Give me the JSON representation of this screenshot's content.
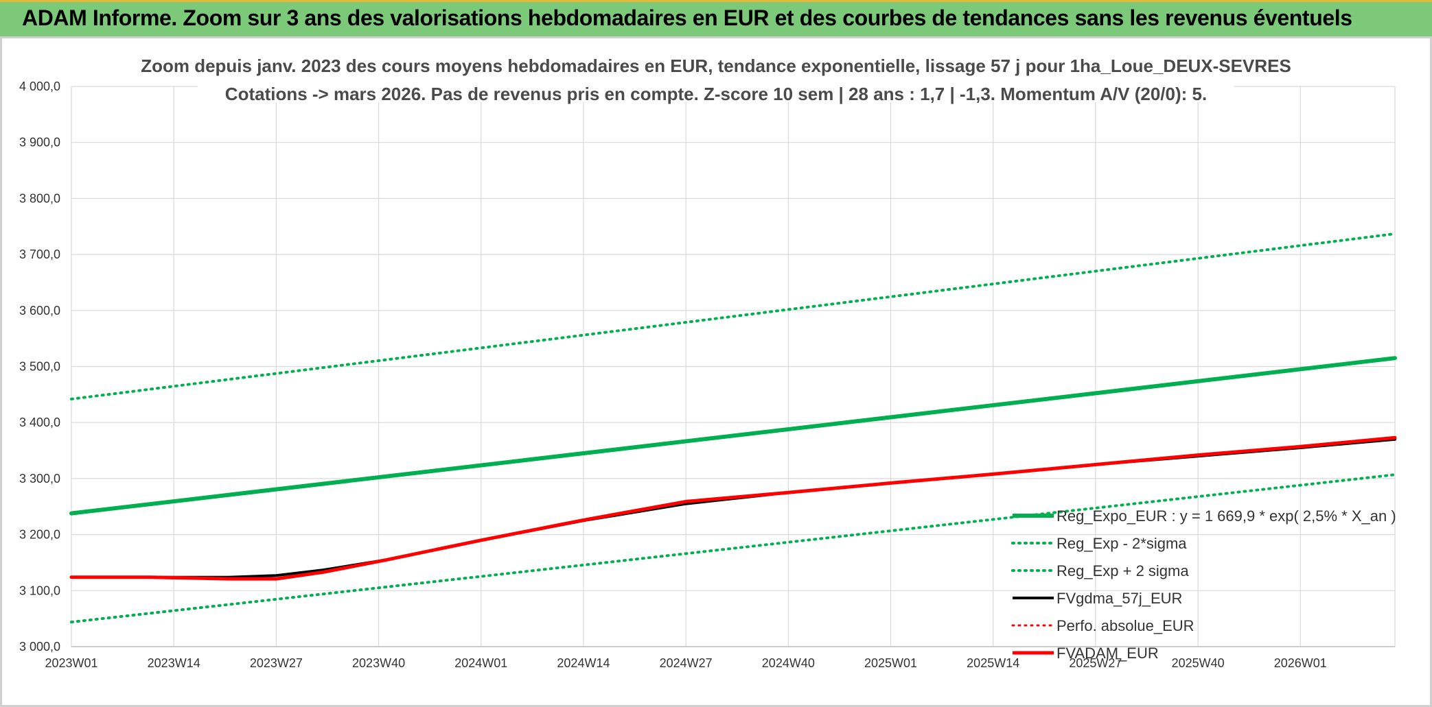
{
  "banner": {
    "title": "ADAM Informe. Zoom sur 3 ans des valorisations hebdomadaires en EUR et des courbes de tendances sans les revenus éventuels"
  },
  "colors": {
    "banner_bg": "#7cc97a",
    "banner_top": "#e4b93a",
    "green": "#00b050",
    "black": "#000000",
    "red": "#ff0000",
    "grid": "#d9d9d9"
  },
  "chart_data": {
    "type": "line",
    "title": [
      "Zoom depuis janv. 2023 des cours moyens hebdomadaires en EUR, tendance exponentielle, lissage 57 j pour 1ha_Loue_DEUX-SEVRES",
      "Cotations -> mars 2026. Pas de revenus pris en compte. Z-score 10 sem | 28 ans : 1,7 | -1,3. Momentum A/V (20/0): 5."
    ],
    "xlabel": "",
    "ylabel": "",
    "ylim": [
      3000,
      4000
    ],
    "ytick_step": 100,
    "y_tick_labels": [
      "3 000,0",
      "3 100,0",
      "3 200,0",
      "3 300,0",
      "3 400,0",
      "3 500,0",
      "3 600,0",
      "3 700,0",
      "3 800,0",
      "3 900,0",
      "4 000,0"
    ],
    "x_tick_labels": [
      "2023W01",
      "2023W14",
      "2023W27",
      "2023W40",
      "2024W01",
      "2024W14",
      "2024W27",
      "2024W40",
      "2025W01",
      "2025W14",
      "2025W27",
      "2025W40",
      "2026W01"
    ],
    "weeks_total": 169,
    "x_tick_step_weeks": 13,
    "grid": true,
    "legend_position": "bottom-right",
    "series": [
      {
        "name": "Reg_Expo_EUR : y = 1 669,9 * exp( 2,5% * X_an )",
        "color": "#00b050",
        "style": "solid",
        "width": 6,
        "points": [
          [
            0,
            3238
          ],
          [
            168,
            3515
          ]
        ]
      },
      {
        "name": "Reg_Exp - 2*sigma",
        "color": "#00b050",
        "style": "dotted",
        "width": 4,
        "points": [
          [
            0,
            3044
          ],
          [
            168,
            3307
          ]
        ]
      },
      {
        "name": "Reg_Exp + 2 sigma",
        "color": "#00b050",
        "style": "dotted",
        "width": 4,
        "points": [
          [
            0,
            3442
          ],
          [
            168,
            3737
          ]
        ]
      },
      {
        "name": "FVgdma_57j_EUR",
        "color": "#000000",
        "style": "solid",
        "width": 4,
        "points": [
          [
            0,
            3124
          ],
          [
            10,
            3124
          ],
          [
            20,
            3124
          ],
          [
            26,
            3127
          ],
          [
            32,
            3137
          ],
          [
            40,
            3155
          ],
          [
            52,
            3190
          ],
          [
            65,
            3225
          ],
          [
            78,
            3255
          ],
          [
            91,
            3275
          ],
          [
            104,
            3292
          ],
          [
            117,
            3308
          ],
          [
            130,
            3325
          ],
          [
            143,
            3340
          ],
          [
            156,
            3355
          ],
          [
            168,
            3370
          ]
        ]
      },
      {
        "name": "Perfo. absolue_EUR",
        "color": "#ff0000",
        "style": "dotted",
        "width": 3,
        "points": [
          [
            0,
            3124
          ],
          [
            10,
            3124
          ],
          [
            20,
            3121
          ],
          [
            26,
            3121
          ],
          [
            32,
            3133
          ],
          [
            40,
            3155
          ],
          [
            52,
            3190
          ],
          [
            65,
            3226
          ],
          [
            78,
            3259
          ],
          [
            91,
            3275
          ],
          [
            104,
            3292
          ],
          [
            117,
            3308
          ],
          [
            130,
            3325
          ],
          [
            143,
            3342
          ],
          [
            156,
            3357
          ],
          [
            168,
            3373
          ]
        ]
      },
      {
        "name": "FVADAM_EUR",
        "color": "#ff0000",
        "style": "solid",
        "width": 5,
        "points": [
          [
            0,
            3124
          ],
          [
            10,
            3124
          ],
          [
            20,
            3121
          ],
          [
            26,
            3121
          ],
          [
            32,
            3133
          ],
          [
            40,
            3155
          ],
          [
            52,
            3190
          ],
          [
            65,
            3226
          ],
          [
            78,
            3259
          ],
          [
            91,
            3275
          ],
          [
            104,
            3292
          ],
          [
            117,
            3308
          ],
          [
            130,
            3325
          ],
          [
            143,
            3342
          ],
          [
            156,
            3357
          ],
          [
            168,
            3373
          ]
        ]
      }
    ]
  }
}
